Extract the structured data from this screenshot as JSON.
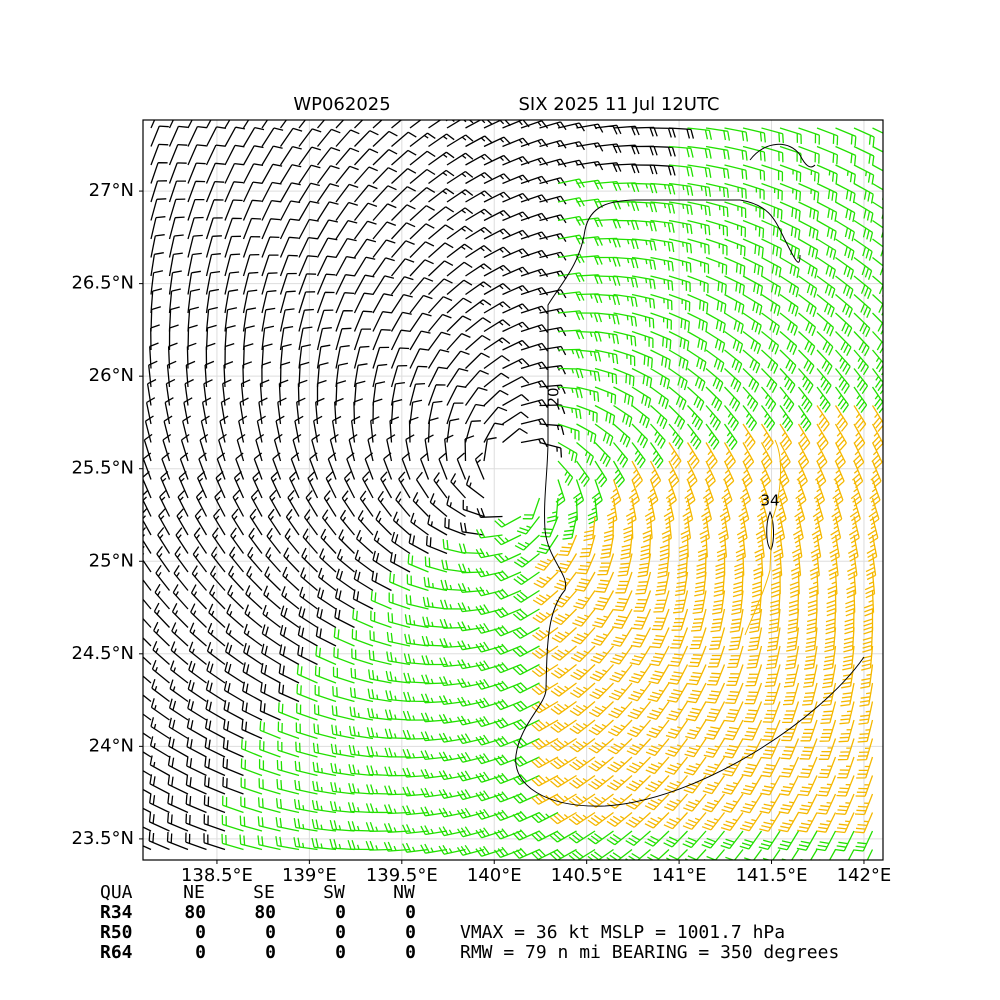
{
  "chart_data": {
    "type": "wind-barb-map",
    "title_left": "WP062025",
    "title_right": "SIX 2025 11 Jul 12UTC",
    "xlim": [
      138.1,
      142.103
    ],
    "ylim": [
      23.386,
      27.384
    ],
    "xticks": [
      {
        "value": 138.5,
        "label": "138.5°E"
      },
      {
        "value": 139,
        "label": "139°E"
      },
      {
        "value": 139.5,
        "label": "139.5°E"
      },
      {
        "value": 140,
        "label": "140°E"
      },
      {
        "value": 140.5,
        "label": "140.5°E"
      },
      {
        "value": 141,
        "label": "141°E"
      },
      {
        "value": 141.5,
        "label": "141.5°E"
      },
      {
        "value": 142,
        "label": "142°E"
      }
    ],
    "yticks": [
      {
        "value": 23.5,
        "label": "23.5°N"
      },
      {
        "value": 24,
        "label": "24°N"
      },
      {
        "value": 24.5,
        "label": "24.5°N"
      },
      {
        "value": 25,
        "label": "25°N"
      },
      {
        "value": 25.5,
        "label": "25.5°N"
      },
      {
        "value": 26,
        "label": "26°N"
      },
      {
        "value": 26.5,
        "label": "26.5°N"
      },
      {
        "value": 27,
        "label": "27°N"
      }
    ],
    "grid": true,
    "contour_labels": [
      "20",
      "34"
    ]
  },
  "wind_radii": {
    "header": [
      "QUA",
      "NE",
      "SE",
      "SW",
      "NW"
    ],
    "rows": [
      {
        "label": "R34",
        "values": [
          80,
          80,
          0,
          0
        ]
      },
      {
        "label": "R50",
        "values": [
          0,
          0,
          0,
          0
        ]
      },
      {
        "label": "R64",
        "values": [
          0,
          0,
          0,
          0
        ]
      }
    ]
  },
  "summary": [
    "VMAX =  36 kt MSLP = 1001.7 hPa",
    "RMW =  79 n mi BEARING = 350 degrees"
  ]
}
